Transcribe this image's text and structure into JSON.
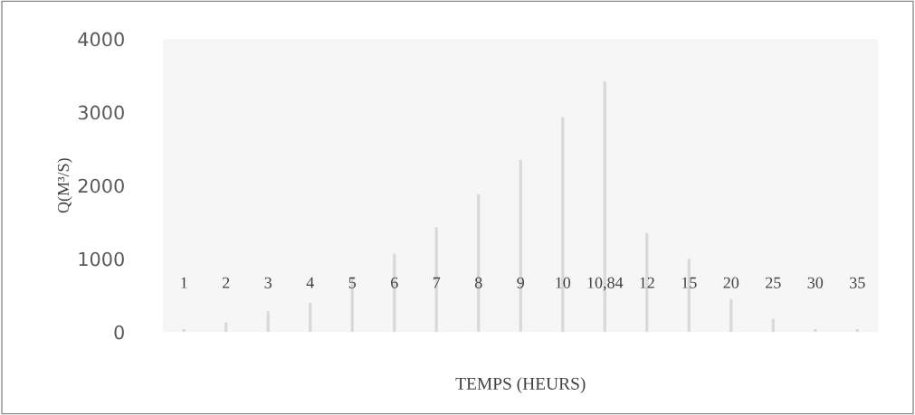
{
  "chart_data": {
    "type": "bar",
    "xlabel": "TEMPS (HEURS)",
    "ylabel": "Q(M³/S)",
    "categories": [
      "1",
      "2",
      "3",
      "4",
      "5",
      "6",
      "7",
      "8",
      "9",
      "10",
      "10,84",
      "12",
      "15",
      "20",
      "25",
      "30",
      "35"
    ],
    "values": [
      40,
      130,
      280,
      400,
      750,
      1070,
      1430,
      1880,
      2350,
      2930,
      3420,
      1350,
      1000,
      450,
      180,
      40,
      40
    ],
    "color": "#d9d9d9",
    "ylim": [
      0,
      4000
    ],
    "yticks": [
      0,
      1000,
      2000,
      3000,
      4000
    ],
    "grid": false
  }
}
